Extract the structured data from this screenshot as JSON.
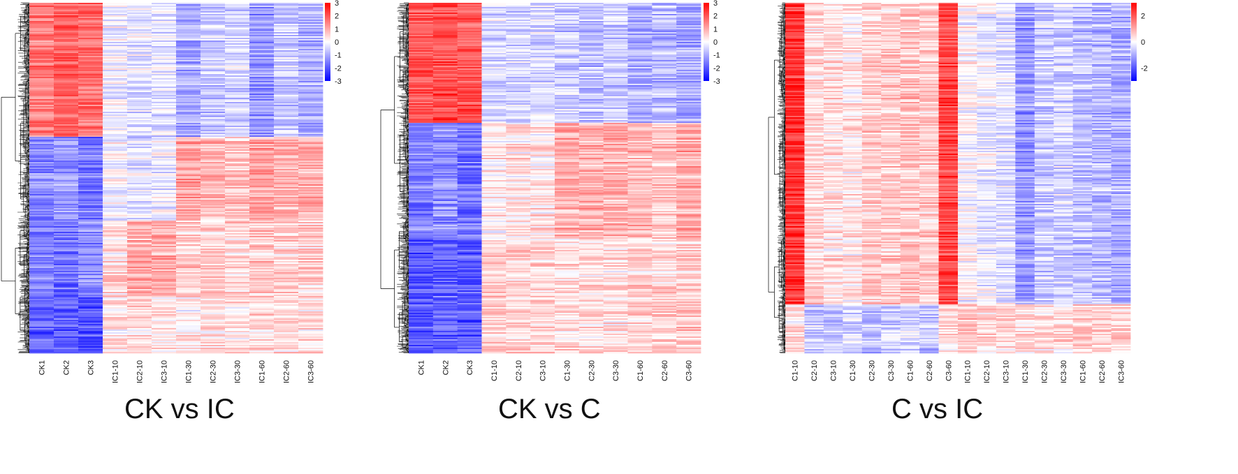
{
  "chart_data": [
    {
      "type": "heatmap",
      "title": "CK vs IC",
      "columns": [
        "CK1",
        "CK2",
        "CK3",
        "IC1-10",
        "IC2-10",
        "IC3-10",
        "IC1-30",
        "IC2-30",
        "IC3-30",
        "IC1-60",
        "IC2-60",
        "IC3-60"
      ],
      "color_scale": {
        "min": -3,
        "max": 3,
        "ticks": [
          3,
          2,
          1,
          0,
          -1,
          -2,
          -3
        ],
        "low": "#0000ff",
        "mid": "#ffffff",
        "high": "#ff0000"
      },
      "row_blocks": [
        {
          "fraction": 0.38,
          "values": [
            1.6,
            1.8,
            1.7,
            -0.2,
            -0.3,
            -0.3,
            -1.0,
            -0.6,
            -0.5,
            -1.2,
            -0.6,
            -0.9
          ]
        },
        {
          "fraction": 0.24,
          "values": [
            -1.4,
            -1.2,
            -1.6,
            -0.1,
            -0.3,
            -0.2,
            1.1,
            0.8,
            0.7,
            1.1,
            0.9,
            1.0
          ]
        },
        {
          "fraction": 0.22,
          "values": [
            -1.5,
            -1.7,
            -1.4,
            0.4,
            0.9,
            0.9,
            0.6,
            0.5,
            0.5,
            0.6,
            0.5,
            0.5
          ]
        },
        {
          "fraction": 0.16,
          "values": [
            -1.9,
            -1.8,
            -2.0,
            0.3,
            0.4,
            0.3,
            0.2,
            0.3,
            0.3,
            0.4,
            0.4,
            0.4
          ]
        }
      ]
    },
    {
      "type": "heatmap",
      "title": "CK vs C",
      "columns": [
        "CK1",
        "CK2",
        "CK3",
        "C1-10",
        "C2-10",
        "C3-10",
        "C1-30",
        "C2-30",
        "C3-30",
        "C1-60",
        "C2-60",
        "C3-60"
      ],
      "color_scale": {
        "min": -3,
        "max": 3,
        "ticks": [
          3,
          2,
          1,
          0,
          -1,
          -2,
          -3
        ],
        "low": "#0000ff",
        "mid": "#ffffff",
        "high": "#ff0000"
      },
      "row_blocks": [
        {
          "fraction": 0.34,
          "values": [
            2.0,
            2.1,
            2.0,
            -0.4,
            -0.5,
            -0.4,
            -0.6,
            -0.7,
            -0.6,
            -0.9,
            -0.8,
            -1.0
          ]
        },
        {
          "fraction": 0.33,
          "values": [
            -1.5,
            -1.3,
            -1.6,
            0.2,
            0.3,
            0.3,
            0.9,
            0.9,
            0.9,
            0.8,
            0.7,
            1.0
          ]
        },
        {
          "fraction": 0.33,
          "values": [
            -2.0,
            -1.8,
            -1.9,
            0.6,
            0.5,
            0.5,
            0.4,
            0.4,
            0.4,
            0.5,
            0.5,
            0.6
          ]
        }
      ]
    },
    {
      "type": "heatmap",
      "title": "C vs IC",
      "columns": [
        "C1-10",
        "C2-10",
        "C3-10",
        "C1-30",
        "C2-30",
        "C3-30",
        "C1-60",
        "C2-60",
        "C3-60",
        "IC1-10",
        "IC2-10",
        "IC3-10",
        "IC1-30",
        "IC2-30",
        "IC3-30",
        "IC1-60",
        "IC2-60",
        "IC3-60"
      ],
      "color_scale": {
        "min": -3,
        "max": 3,
        "ticks": [
          2,
          0,
          -2
        ],
        "low": "#0000ff",
        "mid": "#ffffff",
        "high": "#ff0000"
      },
      "row_blocks": [
        {
          "fraction": 0.86,
          "values": [
            2.4,
            0.5,
            0.4,
            0.3,
            0.6,
            0.6,
            0.7,
            0.6,
            2.2,
            0.0,
            -0.2,
            -0.3,
            -1.2,
            -0.6,
            -0.5,
            -0.7,
            -0.8,
            -0.9
          ]
        },
        {
          "fraction": 0.14,
          "values": [
            0.3,
            -0.6,
            -0.7,
            -0.5,
            -0.8,
            -0.6,
            -0.5,
            -0.7,
            0.4,
            0.6,
            0.4,
            0.5,
            0.3,
            0.4,
            0.4,
            0.6,
            0.6,
            0.5
          ]
        }
      ]
    }
  ]
}
